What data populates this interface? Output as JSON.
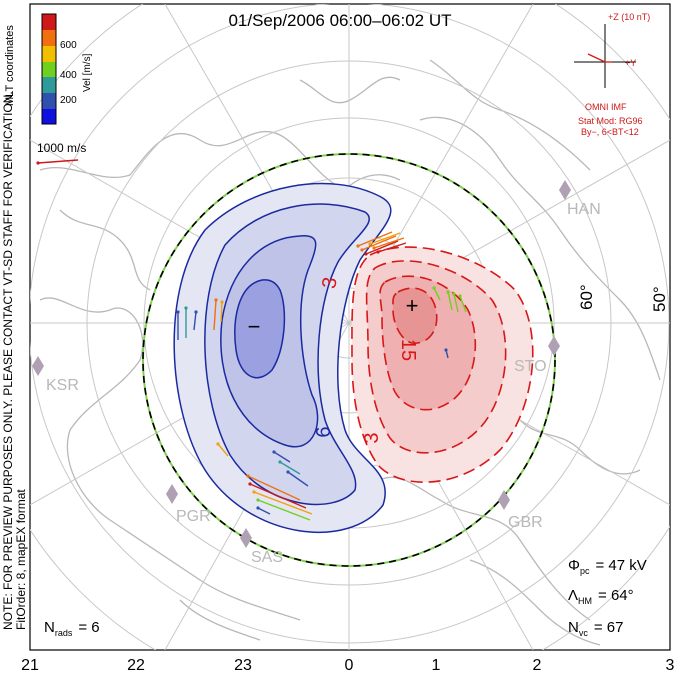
{
  "title": "01/Sep/2006 06:00–06:02 UT",
  "colorbar": {
    "title": "Vel [m/s]",
    "ticks": [
      "600",
      "400",
      "200"
    ],
    "colors": [
      "#d01818",
      "#f07010",
      "#f0c000",
      "#70d020",
      "#2e9a9a",
      "#3050b0",
      "#1010e0"
    ]
  },
  "coordinates_label": "MLT coordinates",
  "reference_vector_label": "1000 m/s",
  "side_note": {
    "line1": "NOTE: FOR PREVIEW PURPOSES ONLY. PLEASE CONTACT VT-SD STAFF FOR VERIFICATION.",
    "line2": "FitOrder: 8,  mapEX format"
  },
  "imf": {
    "scale_label": "+Z (10 nT)",
    "y_label": "+Y",
    "source": "OMNI IMF",
    "model_line1": "Stat Mod: RG96",
    "model_line2": "By−, 6<BT<12"
  },
  "latitude_labels": [
    "60°",
    "50°"
  ],
  "radar_labels": [
    "HAN",
    "STO",
    "KSR",
    "PGR",
    "SAS",
    "GBR"
  ],
  "contour_labels": [
    "3",
    "15",
    "6",
    "3"
  ],
  "extrema_symbols": {
    "minimum": "−",
    "maximum": "+"
  },
  "stats": {
    "phi_symbol": "Φ",
    "phi_sub": "pc",
    "phi_value": "= 47 kV",
    "lambda_symbol": "Λ",
    "lambda_sub": "HM",
    "lambda_value": "= 64°",
    "nvc_symbol": "N",
    "nvc_sub": "vc",
    "nvc_value": "= 67",
    "nrads_symbol": "N",
    "nrads_sub": "rads",
    "nrads_value": "= 6"
  },
  "mlt_axis": [
    "21",
    "22",
    "23",
    "0",
    "1",
    "2",
    "3"
  ]
}
